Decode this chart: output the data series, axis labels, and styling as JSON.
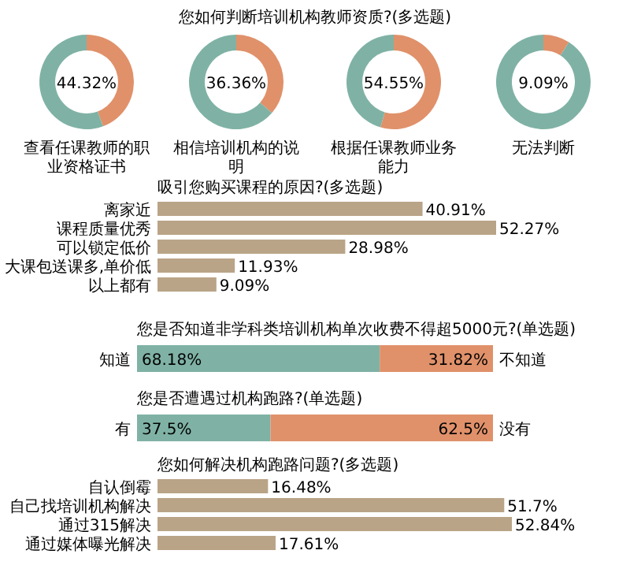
{
  "chart_data": [
    {
      "type": "donut",
      "title": "您如何判断培训机构教师资质?(多选题)",
      "xlabel": "查看任课教师的职业资格证书",
      "categories": [
        null,
        null
      ],
      "values": [
        44.32,
        55.68
      ],
      "colors": [
        "#e0916a",
        "#7fb2a5"
      ],
      "annotations": [
        "44.32%"
      ]
    },
    {
      "type": "donut",
      "xlabel": "相信培训机构的说明",
      "categories": [
        null,
        null
      ],
      "values": [
        36.36,
        63.64
      ],
      "colors": [
        "#e0916a",
        "#7fb2a5"
      ],
      "annotations": [
        "36.36%"
      ]
    },
    {
      "type": "donut",
      "xlabel": "根据任课教师业务能力",
      "categories": [
        null,
        null
      ],
      "values": [
        54.55,
        45.45
      ],
      "colors": [
        "#e0916a",
        "#7fb2a5"
      ],
      "annotations": [
        "54.55%"
      ]
    },
    {
      "type": "donut",
      "xlabel": "无法判断",
      "categories": [
        null,
        null
      ],
      "values": [
        9.09,
        90.91
      ],
      "colors": [
        "#e0916a",
        "#7fb2a5"
      ],
      "annotations": [
        "9.09%"
      ]
    },
    {
      "type": "bar",
      "orientation": "horizontal",
      "title": "吸引您购买课程的原因?(多选题)",
      "categories": [
        "离家近",
        "课程质量优秀",
        "可以锁定低价",
        "大课包送课多,单价低",
        "以上都有"
      ],
      "values": [
        40.91,
        52.27,
        28.98,
        11.93,
        9.09
      ],
      "value_labels": [
        "40.91%",
        "52.27%",
        "28.98%",
        "11.93%",
        "9.09%"
      ],
      "color": "#b9a487"
    },
    {
      "type": "bar",
      "orientation": "horizontal",
      "stacked": true,
      "title": "您是否知道非学科类培训机构单次收费不得超5000元?(单选题)",
      "categories": [
        null
      ],
      "series": [
        {
          "name": "知道",
          "color": "#7fb2a5",
          "values": [
            68.18
          ],
          "value_labels": [
            "68.18%"
          ]
        },
        {
          "name": "不知道",
          "color": "#e0916a",
          "values": [
            31.82
          ],
          "value_labels": [
            "31.82%"
          ]
        }
      ]
    },
    {
      "type": "bar",
      "orientation": "horizontal",
      "stacked": true,
      "title": "您是否遭遇过机构跑路?(单选题)",
      "categories": [
        null
      ],
      "series": [
        {
          "name": "有",
          "color": "#7fb2a5",
          "values": [
            37.5
          ],
          "value_labels": [
            "37.5%"
          ]
        },
        {
          "name": "没有",
          "color": "#e0916a",
          "values": [
            62.5
          ],
          "value_labels": [
            "62.5%"
          ]
        }
      ]
    },
    {
      "type": "bar",
      "orientation": "horizontal",
      "title": "您如何解决机构跑路问题?(多选题)",
      "categories": [
        "自认倒霉",
        "自己找培训机构解决",
        "通过315解决",
        "通过媒体曝光解决"
      ],
      "values": [
        16.48,
        51.7,
        52.84,
        17.61
      ],
      "value_labels": [
        "16.48%",
        "51.7%",
        "52.84%",
        "17.61%"
      ],
      "color": "#b9a487"
    }
  ]
}
